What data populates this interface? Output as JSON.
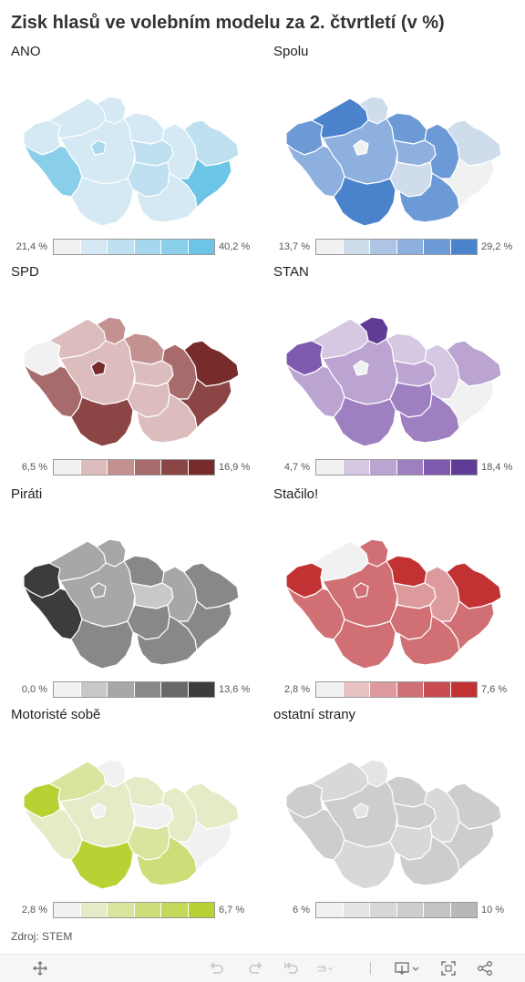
{
  "title": "Zisk hlasů ve volebním modelu za 2. čtvrtletí (v %)",
  "source": "Zdroj: STEM",
  "panels": [
    {
      "name": "ANO",
      "min": "21,4 %",
      "max": "40,2 %",
      "ramp": [
        "#f1f1f1",
        "#d4e9f3",
        "#bfe0f0",
        "#a6d7ee",
        "#8acfea",
        "#6cc4e6"
      ],
      "regions": [
        1,
        1,
        1,
        1,
        3,
        4,
        1,
        1,
        2,
        2,
        1,
        1,
        2,
        5
      ]
    },
    {
      "name": "Spolu",
      "min": "13,7 %",
      "max": "29,2 %",
      "ramp": [
        "#f1f1f1",
        "#cfdcec",
        "#adc4e4",
        "#8eb0de",
        "#6b9ad6",
        "#4a82cc"
      ],
      "regions": [
        4,
        5,
        1,
        3,
        0,
        3,
        5,
        4,
        3,
        1,
        4,
        4,
        1,
        0
      ]
    },
    {
      "name": "SPD",
      "min": "6,5 %",
      "max": "16,9 %",
      "ramp": [
        "#f1f1f1",
        "#dcbcbc",
        "#c49191",
        "#a86b6b",
        "#8c4545",
        "#772b2b"
      ],
      "regions": [
        0,
        1,
        2,
        1,
        5,
        3,
        4,
        2,
        1,
        1,
        1,
        3,
        5,
        4
      ]
    },
    {
      "name": "STAN",
      "min": "4,7 %",
      "max": "18,4 %",
      "ramp": [
        "#f1f1f1",
        "#d6c8e2",
        "#bba4d2",
        "#9e80c0",
        "#7f5aae",
        "#613c96"
      ],
      "regions": [
        4,
        1,
        5,
        2,
        0,
        2,
        3,
        1,
        2,
        3,
        3,
        1,
        2,
        0
      ]
    },
    {
      "name": "Piráti",
      "min": "0,0 %",
      "max": "13,6 %",
      "ramp": [
        "#f1f1f1",
        "#c8c8c8",
        "#a7a7a7",
        "#888888",
        "#686868",
        "#3c3c3c"
      ],
      "regions": [
        5,
        2,
        2,
        2,
        2,
        5,
        3,
        3,
        1,
        3,
        3,
        2,
        3,
        3
      ]
    },
    {
      "name": "Stačilo!",
      "min": "2,8 %",
      "max": "7,6 %",
      "ramp": [
        "#f1f1f1",
        "#e8c2c2",
        "#dc9a9c",
        "#d07074",
        "#c84c50",
        "#c23232"
      ],
      "regions": [
        5,
        0,
        3,
        3,
        3,
        3,
        3,
        5,
        2,
        3,
        3,
        2,
        5,
        3
      ]
    },
    {
      "name": "Motoristé sobě",
      "min": "2,8 %",
      "max": "6,7 %",
      "ramp": [
        "#f1f1f1",
        "#e5ebc6",
        "#d8e59e",
        "#cbde78",
        "#c2d858",
        "#b9d132"
      ],
      "regions": [
        5,
        2,
        0,
        1,
        0,
        1,
        5,
        1,
        0,
        2,
        3,
        1,
        1,
        0
      ]
    },
    {
      "name": "ostatní strany",
      "min": "6 %",
      "max": "10 %",
      "ramp": [
        "#f1f1f1",
        "#e4e4e4",
        "#d8d8d8",
        "#cdcdcd",
        "#c3c3c3",
        "#b8b8b8"
      ],
      "regions": [
        3,
        2,
        1,
        3,
        1,
        3,
        2,
        3,
        3,
        2,
        3,
        2,
        3,
        3
      ]
    }
  ],
  "toolbar": {
    "icons": [
      "move-icon",
      "undo-icon",
      "redo-icon",
      "revert-icon",
      "replay-icon",
      "download-icon",
      "fullscreen-icon",
      "share-icon"
    ]
  }
}
